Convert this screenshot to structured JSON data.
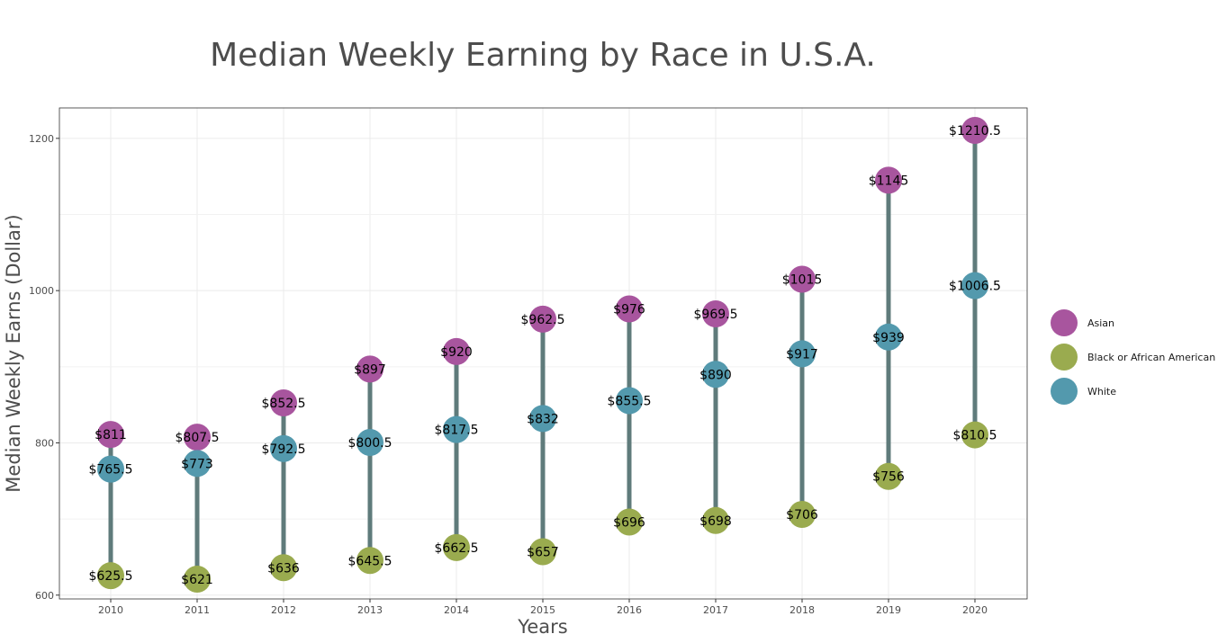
{
  "chart_data": {
    "type": "scatter",
    "title": "Median Weekly Earning by Race in U.S.A.",
    "xlabel": "Years",
    "ylabel": "Median Weekly Earns (Dollar)",
    "categories": [
      "2010",
      "2011",
      "2012",
      "2013",
      "2014",
      "2015",
      "2016",
      "2017",
      "2018",
      "2019",
      "2020"
    ],
    "ylim": [
      595,
      1240
    ],
    "yticks": [
      600,
      800,
      1000,
      1200
    ],
    "grid": true,
    "legend_position": "right",
    "connector_color": "#5f7b7b",
    "series": [
      {
        "name": "Asian",
        "color": "#a8559e",
        "values": [
          811,
          807.5,
          852.5,
          897,
          920,
          962.5,
          976,
          969.5,
          1015,
          1145,
          1210.5
        ],
        "labels": [
          "$811",
          "$807.5",
          "$852.5",
          "$897",
          "$920",
          "$962.5",
          "$976",
          "$969.5",
          "$1015",
          "$1145",
          "$1210.5"
        ]
      },
      {
        "name": "Black or African American",
        "color": "#9aab4f",
        "values": [
          625.5,
          621,
          636,
          645.5,
          662.5,
          657,
          696,
          698,
          706,
          756,
          810.5
        ],
        "labels": [
          "$625.5",
          "$621",
          "$636",
          "$645.5",
          "$662.5",
          "$657",
          "$696",
          "$698",
          "$706",
          "$756",
          "$810.5"
        ]
      },
      {
        "name": "White",
        "color": "#5399ad",
        "values": [
          765.5,
          773,
          792.5,
          800.5,
          817.5,
          832,
          855.5,
          890,
          917,
          939,
          1006.5
        ],
        "labels": [
          "$765.5",
          "$773",
          "$792.5",
          "$800.5",
          "$817.5",
          "$832",
          "$855.5",
          "$890",
          "$917",
          "$939",
          "$1006.5"
        ]
      }
    ]
  }
}
